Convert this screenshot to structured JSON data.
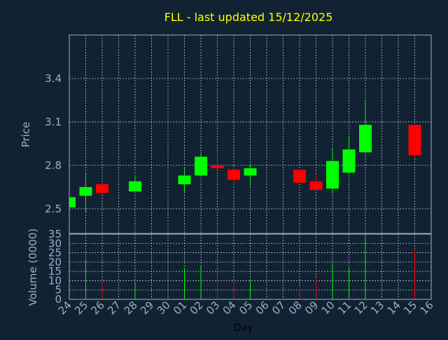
{
  "colors": {
    "background": "#112233",
    "title": "#ffff00",
    "axis_text": "#9ab0c8",
    "up": "#00ff00",
    "down": "#ff0000",
    "grid": "#b8c4d0"
  },
  "chart_data": {
    "type": "candlestick",
    "title": "FLL - last updated 15/12/2025",
    "xlabel": "Day",
    "price_panel": {
      "ylabel": "Price",
      "ylim": [
        2.33,
        3.7
      ],
      "yticks": [
        "2.5",
        "2.8",
        "3.1",
        "3.4"
      ]
    },
    "volume_panel": {
      "ylabel": "Volume (0000)",
      "ylim": [
        0,
        35
      ],
      "yticks": [
        "0",
        "5",
        "10",
        "15",
        "20",
        "25",
        "30",
        "35"
      ]
    },
    "grid": true,
    "x_tick_labels": [
      "24",
      "25",
      "26",
      "27",
      "28",
      "29",
      "30",
      "01",
      "02",
      "03",
      "04",
      "05",
      "06",
      "07",
      "08",
      "09",
      "10",
      "11",
      "12",
      "13",
      "14",
      "15",
      "16"
    ],
    "candles": [
      {
        "x": 0,
        "open": 2.51,
        "close": 2.58,
        "high": 2.58,
        "low": 2.5,
        "volume": 0
      },
      {
        "x": 1,
        "open": 2.59,
        "close": 2.65,
        "high": 2.75,
        "low": 2.48,
        "volume": 21
      },
      {
        "x": 2,
        "open": 2.67,
        "close": 2.61,
        "high": 2.67,
        "low": 2.6,
        "volume": 9
      },
      {
        "x": 4,
        "open": 2.62,
        "close": 2.69,
        "high": 2.73,
        "low": 2.62,
        "volume": 9
      },
      {
        "x": 7,
        "open": 2.67,
        "close": 2.73,
        "high": 2.79,
        "low": 2.61,
        "volume": 17
      },
      {
        "x": 8,
        "open": 2.73,
        "close": 2.86,
        "high": 2.89,
        "low": 2.73,
        "volume": 18
      },
      {
        "x": 9,
        "open": 2.8,
        "close": 2.78,
        "high": 2.89,
        "low": 2.77,
        "volume": 15
      },
      {
        "x": 10,
        "open": 2.77,
        "close": 2.7,
        "high": 2.8,
        "low": 2.67,
        "volume": 9
      },
      {
        "x": 11,
        "open": 2.73,
        "close": 2.78,
        "high": 2.81,
        "low": 2.66,
        "volume": 10
      },
      {
        "x": 14,
        "open": 2.77,
        "close": 2.68,
        "high": 2.77,
        "low": 2.68,
        "volume": 7
      },
      {
        "x": 15,
        "open": 2.69,
        "close": 2.63,
        "high": 2.74,
        "low": 2.63,
        "volume": 11
      },
      {
        "x": 16,
        "open": 2.64,
        "close": 2.83,
        "high": 2.92,
        "low": 2.61,
        "volume": 19
      },
      {
        "x": 17,
        "open": 2.75,
        "close": 2.91,
        "high": 3.0,
        "low": 2.74,
        "volume": 17
      },
      {
        "x": 18,
        "open": 2.89,
        "close": 3.08,
        "high": 3.25,
        "low": 2.89,
        "volume": 35
      },
      {
        "x": 21,
        "open": 3.08,
        "close": 2.87,
        "high": 3.08,
        "low": 2.85,
        "volume": 27
      }
    ]
  }
}
